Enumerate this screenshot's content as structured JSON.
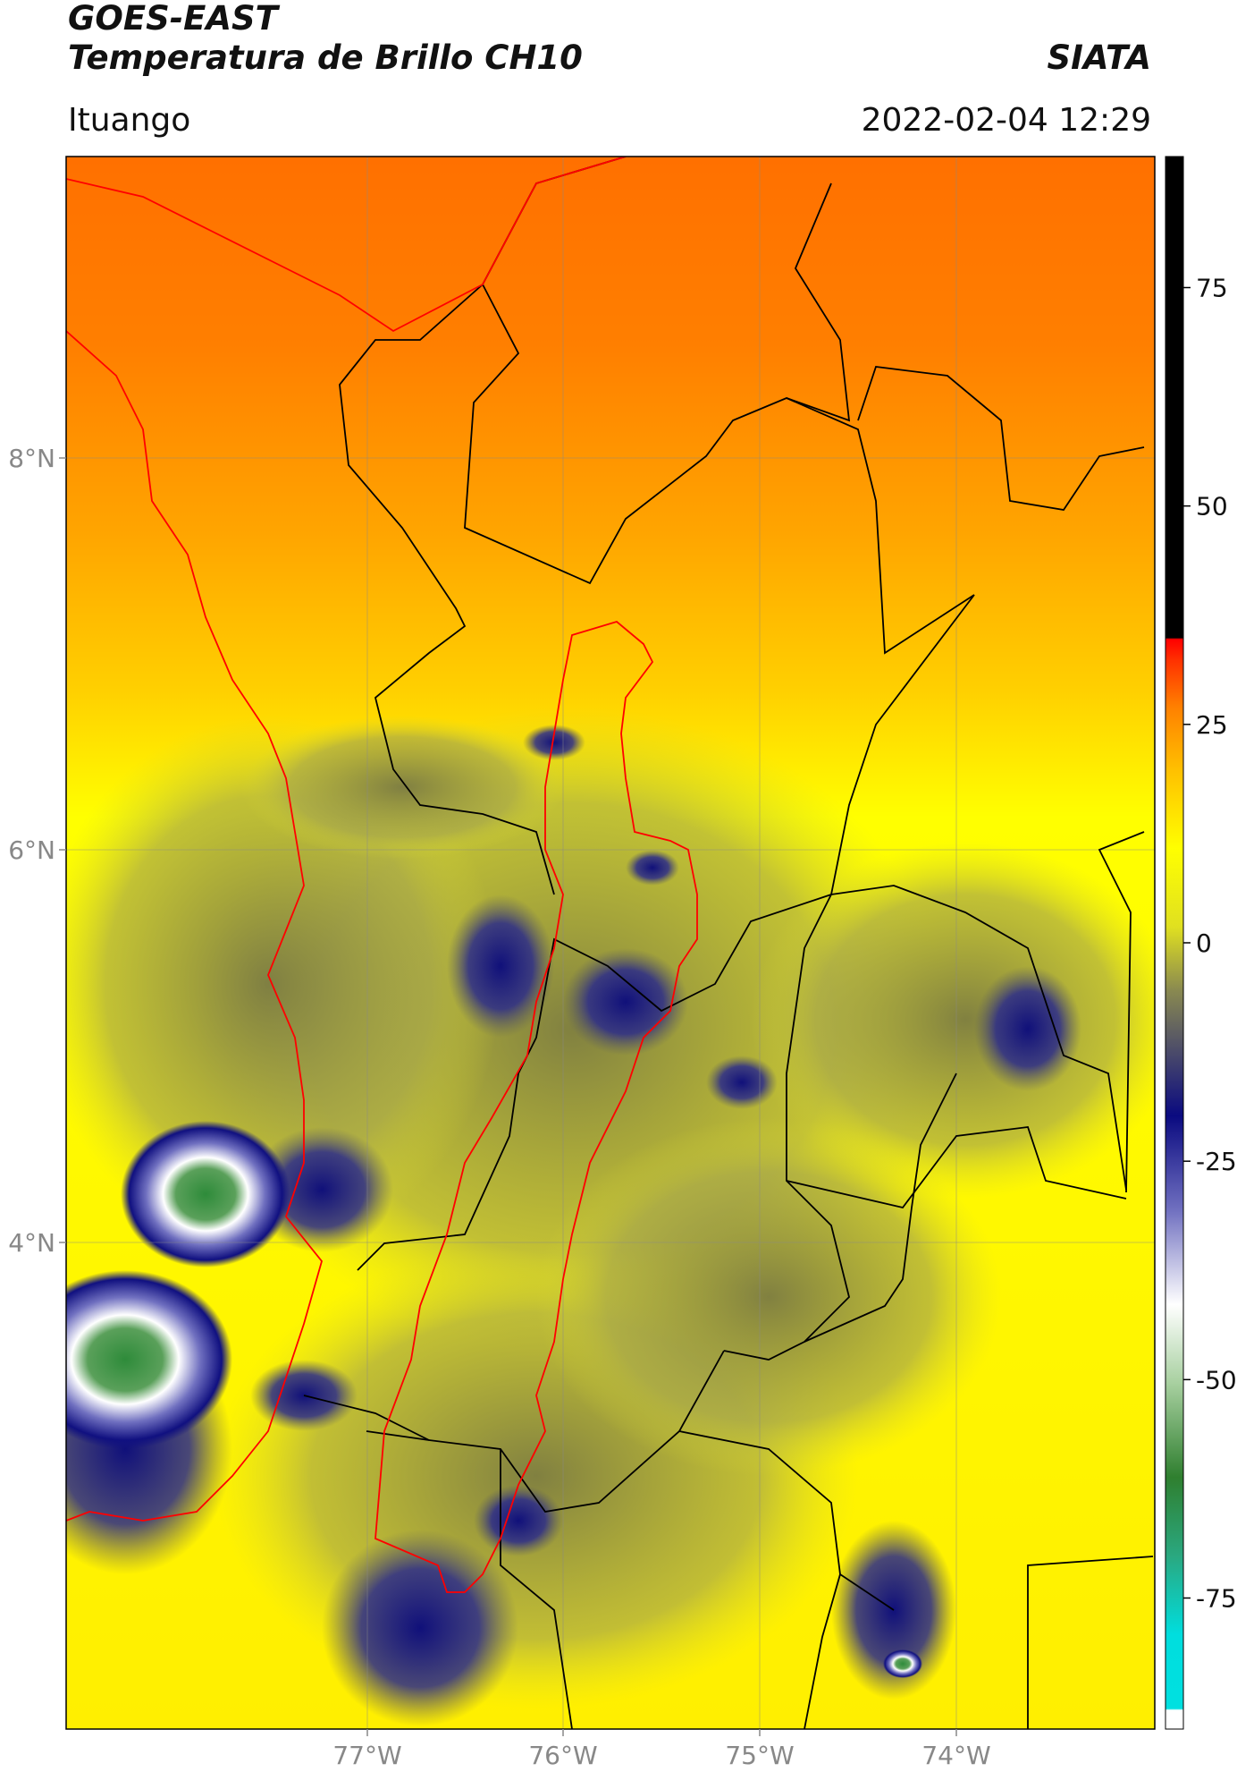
{
  "header": {
    "satellite": "GOES-EAST",
    "product": "Temperatura de Brillo CH10",
    "organization": "SIATA",
    "region": "Ituango",
    "datetime": "2022-02-04 12:29"
  },
  "map": {
    "lat_ticks": [
      "8°N",
      "6°N",
      "4°N"
    ],
    "lon_ticks": [
      "77°W",
      "76°W",
      "75°W",
      "74°W"
    ]
  },
  "colorbar": {
    "tick_labels": [
      "75",
      "50",
      "25",
      "0",
      "-25",
      "-50",
      "-75"
    ],
    "tick_values": [
      75,
      50,
      25,
      0,
      -25,
      -50,
      -75
    ],
    "range": [
      -90,
      90
    ],
    "colors": {
      "black": "#000000",
      "red": "#ff0000",
      "orange": "#ff7f00",
      "yellow": "#ffff00",
      "olive": "#6e6e3a",
      "navy": "#0a0a80",
      "white": "#ffffff",
      "green": "#2e7d32",
      "cyan": "#00e5e5"
    }
  }
}
